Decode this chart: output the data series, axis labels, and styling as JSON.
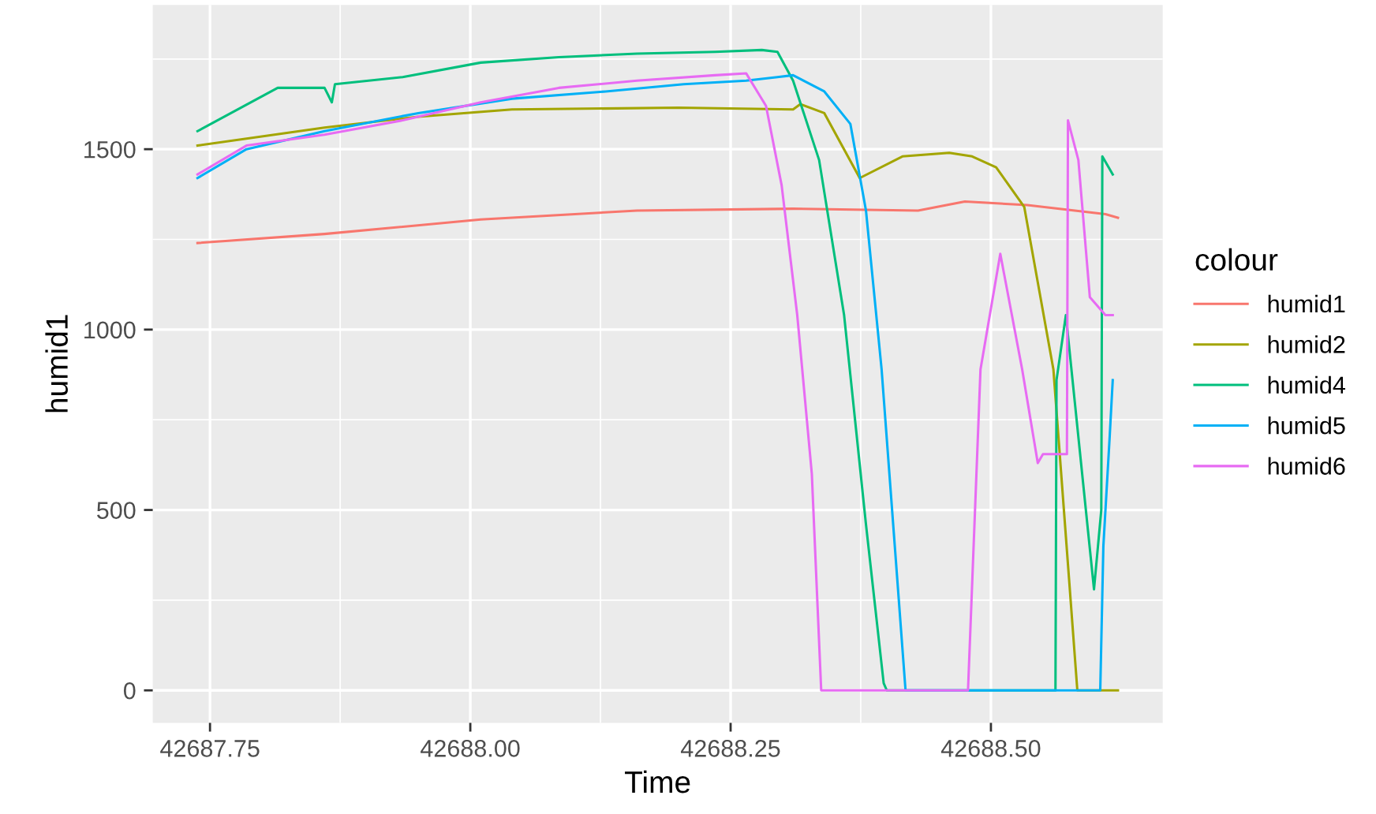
{
  "chart_data": {
    "type": "line",
    "xlabel": "Time",
    "ylabel": "humid1",
    "legend_title": "colour",
    "legend": "right",
    "grid": true,
    "xlim": [
      42687.695,
      42688.665
    ],
    "ylim": [
      -90,
      1900
    ],
    "xticks": [
      {
        "value": 42687.75,
        "label": "42687.75"
      },
      {
        "value": 42688.0,
        "label": "42688.00"
      },
      {
        "value": 42688.25,
        "label": "42688.25"
      },
      {
        "value": 42688.5,
        "label": "42688.50"
      }
    ],
    "yticks": [
      0,
      500,
      1000,
      1500
    ],
    "series": [
      {
        "name": "humid1",
        "color": "#F8766D",
        "x": [
          42687.738,
          42687.86,
          42688.01,
          42688.16,
          42688.31,
          42688.43,
          42688.475,
          42688.535,
          42688.61,
          42688.622
        ],
        "values": [
          1240,
          1265,
          1305,
          1330,
          1335,
          1330,
          1355,
          1345,
          1320,
          1310
        ]
      },
      {
        "name": "humid2",
        "color": "#A3A500",
        "x": [
          42687.738,
          42687.86,
          42687.95,
          42688.04,
          42688.2,
          42688.31,
          42688.317,
          42688.34,
          42688.374,
          42688.415,
          42688.46,
          42688.482,
          42688.505,
          42688.532,
          42688.56,
          42688.575,
          42688.583,
          42688.622
        ],
        "values": [
          1510,
          1560,
          1590,
          1610,
          1615,
          1610,
          1625,
          1600,
          1420,
          1480,
          1490,
          1480,
          1450,
          1340,
          890,
          310,
          0,
          0
        ]
      },
      {
        "name": "humid4",
        "color": "#00BF7D",
        "x": [
          42687.738,
          42687.815,
          42687.86,
          42687.867,
          42687.87,
          42687.935,
          42688.01,
          42688.085,
          42688.16,
          42688.235,
          42688.28,
          42688.295,
          42688.31,
          42688.335,
          42688.359,
          42688.38,
          42688.397,
          42688.4,
          42688.562,
          42688.563,
          42688.572,
          42688.599,
          42688.606,
          42688.607,
          42688.617
        ],
        "values": [
          1550,
          1670,
          1670,
          1630,
          1680,
          1700,
          1740,
          1755,
          1765,
          1770,
          1775,
          1770,
          1690,
          1470,
          1040,
          460,
          20,
          0,
          0,
          860,
          1040,
          280,
          500,
          1480,
          1430
        ]
      },
      {
        "name": "humid5",
        "color": "#00B0F6",
        "x": [
          42687.738,
          42687.785,
          42687.86,
          42687.95,
          42688.04,
          42688.13,
          42688.205,
          42688.265,
          42688.295,
          42688.31,
          42688.34,
          42688.365,
          42688.38,
          42688.395,
          42688.41,
          42688.418,
          42688.605,
          42688.608,
          42688.614,
          42688.617
        ],
        "values": [
          1420,
          1500,
          1550,
          1600,
          1640,
          1660,
          1680,
          1690,
          1700,
          1705,
          1660,
          1570,
          1330,
          890,
          310,
          0,
          0,
          400,
          700,
          860
        ]
      },
      {
        "name": "humid6",
        "color": "#E76BF3",
        "x": [
          42687.738,
          42687.785,
          42687.86,
          42687.935,
          42688.01,
          42688.085,
          42688.16,
          42688.235,
          42688.265,
          42688.284,
          42688.299,
          42688.314,
          42688.328,
          42688.337,
          42688.478,
          42688.49,
          42688.509,
          42688.53,
          42688.545,
          42688.55,
          42688.569,
          42688.573,
          42688.574,
          42688.584,
          42688.595,
          42688.61,
          42688.617
        ],
        "values": [
          1430,
          1510,
          1540,
          1580,
          1630,
          1670,
          1690,
          1705,
          1710,
          1620,
          1400,
          1040,
          600,
          0,
          0,
          890,
          1210,
          890,
          630,
          655,
          655,
          655,
          1580,
          1470,
          1090,
          1040,
          1040
        ]
      }
    ]
  }
}
